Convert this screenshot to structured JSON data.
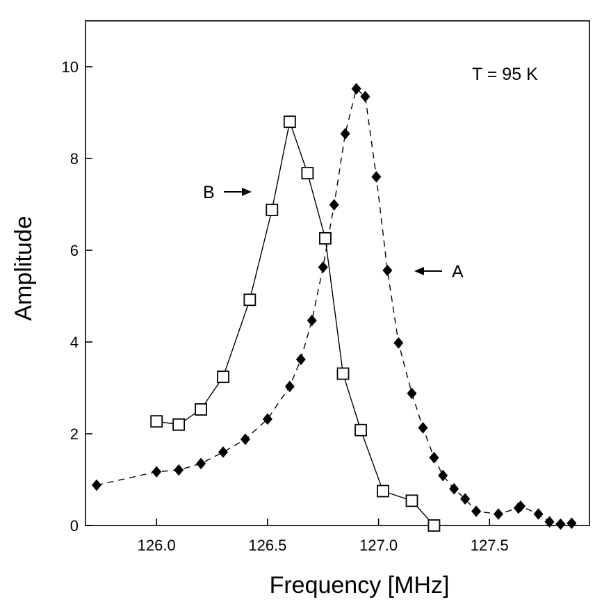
{
  "chart_data": {
    "type": "line",
    "title": "",
    "xlabel": "Frequency [MHz]",
    "ylabel": "Amplitude",
    "xlim": [
      125.68,
      127.95
    ],
    "ylim": [
      0,
      11
    ],
    "x_ticks": [
      "126.0",
      "126.5",
      "127.0",
      "127.5"
    ],
    "x_tick_values": [
      126.0,
      126.5,
      127.0,
      127.5
    ],
    "y_ticks": [
      "0",
      "2",
      "4",
      "6",
      "8",
      "10"
    ],
    "y_tick_values": [
      0,
      2,
      4,
      6,
      8,
      10
    ],
    "grid": false,
    "annotations": {
      "temperature": "T = 95 K",
      "label_a": "A",
      "label_b": "B"
    },
    "series": [
      {
        "name": "A",
        "line_style": "dashed",
        "marker": "filled-diamond",
        "x": [
          125.73,
          126.0,
          126.1,
          126.2,
          126.3,
          126.4,
          126.5,
          126.6,
          126.65,
          126.7,
          126.75,
          126.8,
          126.85,
          126.9,
          126.94,
          126.99,
          127.04,
          127.09,
          127.15,
          127.2,
          127.25,
          127.29,
          127.34,
          127.39,
          127.44,
          127.54,
          127.63,
          127.64,
          127.72,
          127.77,
          127.82,
          127.87
        ],
        "y": [
          0.88,
          1.17,
          1.21,
          1.35,
          1.6,
          1.88,
          2.32,
          3.03,
          3.62,
          4.47,
          5.63,
          6.99,
          8.54,
          9.52,
          9.35,
          7.6,
          5.56,
          3.98,
          2.88,
          2.13,
          1.48,
          1.09,
          0.8,
          0.58,
          0.31,
          0.25,
          0.38,
          0.42,
          0.25,
          0.08,
          0.03,
          0.05
        ]
      },
      {
        "name": "B",
        "line_style": "solid",
        "marker": "open-square",
        "x": [
          126.0,
          126.1,
          126.2,
          126.3,
          126.42,
          126.52,
          126.6,
          126.68,
          126.76,
          126.84,
          126.92,
          127.02,
          127.15,
          127.25
        ],
        "y": [
          2.27,
          2.2,
          2.53,
          3.24,
          4.92,
          6.88,
          8.8,
          7.68,
          6.26,
          3.31,
          2.08,
          0.75,
          0.54,
          0.0
        ]
      }
    ]
  }
}
